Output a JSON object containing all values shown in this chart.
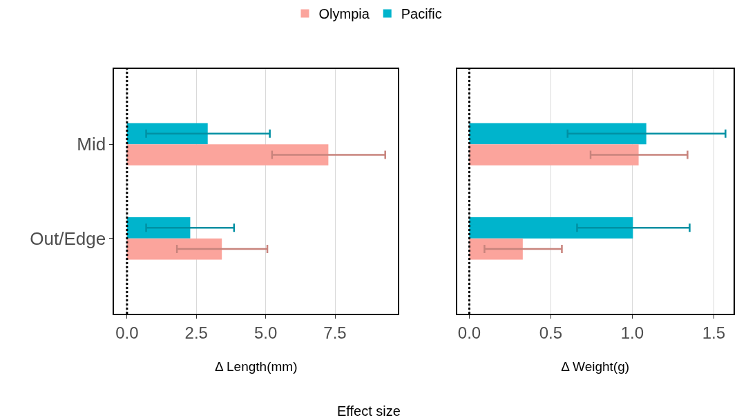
{
  "chart_data": [
    {
      "type": "bar",
      "orientation": "horizontal",
      "xlabel": "Δ Length(mm)",
      "categories": [
        "Mid",
        "Out/Edge"
      ],
      "xlim": [
        -0.46,
        9.77
      ],
      "xticks": [
        {
          "value": 0,
          "label": "0.0"
        },
        2.5,
        {
          "value": 5,
          "label": "5.0"
        },
        7.5
      ],
      "grid": "x",
      "legend": "top",
      "series": [
        {
          "name": "Olympia",
          "color": "#fba49c",
          "values": [
            7.26,
            3.42
          ],
          "errors": [
            [
              5.23,
              9.31
            ],
            [
              1.8,
              5.06
            ]
          ]
        },
        {
          "name": "Pacific",
          "color": "#00b4cc",
          "values": [
            2.91,
            2.28
          ],
          "errors": [
            [
              0.69,
              5.15
            ],
            [
              0.69,
              3.86
            ]
          ]
        }
      ],
      "ref_lines": [
        {
          "axis": "x",
          "value": 0,
          "color": "#000000",
          "line_style": "dotted"
        }
      ],
      "annotations": [
        "Effect size"
      ]
    },
    {
      "type": "bar",
      "orientation": "horizontal",
      "xlabel": "Δ Weight(g)",
      "categories": [
        "Mid",
        "Out/Edge"
      ],
      "xlim": [
        -0.076,
        1.62
      ],
      "xticks": [
        {
          "value": 0,
          "label": "0.0"
        },
        0.5,
        {
          "value": 1,
          "label": "1.0"
        },
        1.5
      ],
      "grid": "x",
      "tick_labels": "x",
      "series": [
        {
          "name": "Olympia",
          "color": "#fba49c",
          "values": [
            1.039,
            0.328
          ],
          "errors": [
            [
              0.744,
              1.339
            ],
            [
              0.093,
              0.568
            ]
          ]
        },
        {
          "name": "Pacific",
          "color": "#00b4cc",
          "values": [
            1.086,
            1.004
          ],
          "errors": [
            [
              0.603,
              1.572
            ],
            [
              0.661,
              1.352
            ]
          ]
        }
      ],
      "ref_lines": [
        {
          "axis": "x",
          "value": 0,
          "color": "#000000",
          "line_style": "dotted"
        }
      ]
    }
  ]
}
